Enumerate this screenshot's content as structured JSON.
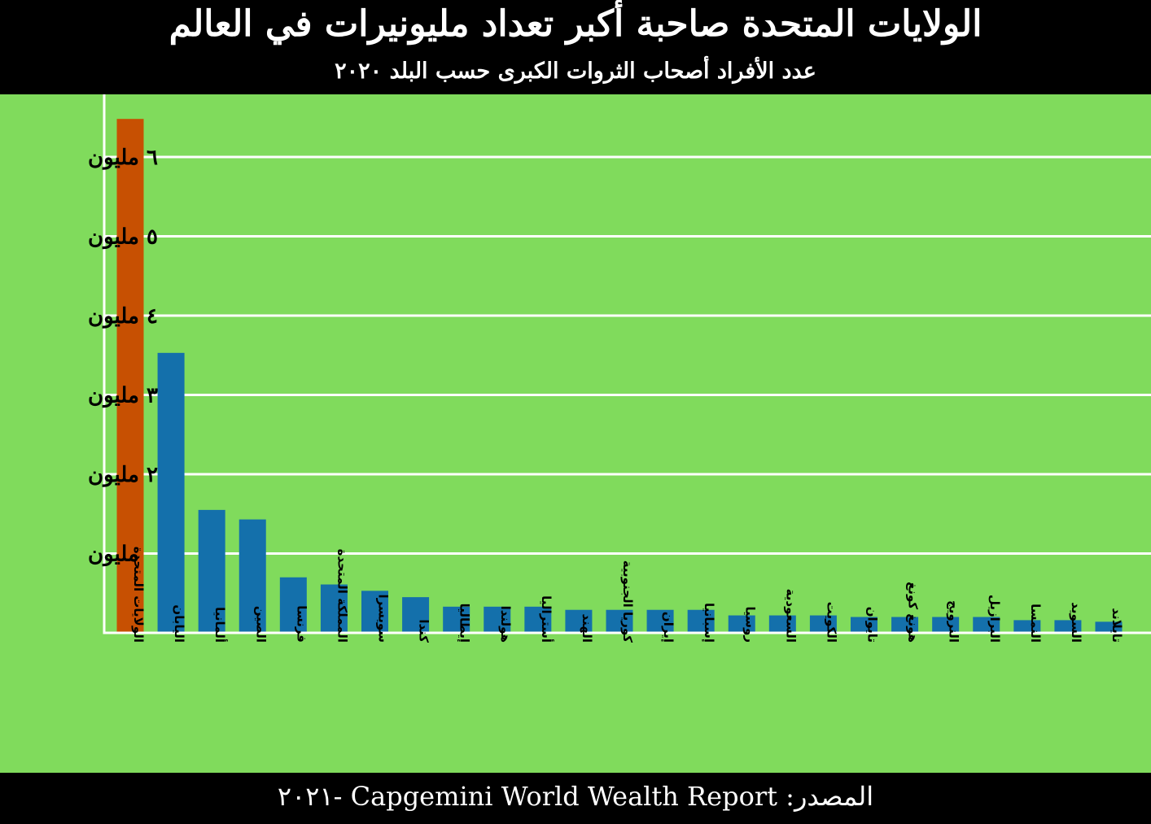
{
  "header": {
    "title": "الولايات المتحدة صاحبة أكبر تعداد مليونيرات في العالم",
    "subtitle": "عدد الأفراد أصحاب الثروات الكبرى حسب البلد ٢٠٢٠"
  },
  "footer": {
    "source": "المصدر: Capgemini World Wealth Report -٢٠٢١"
  },
  "colors": {
    "background": "#80db5c",
    "bar": "#1470ab",
    "highlight": "#c75002",
    "grid": "#ffffff"
  },
  "chart_data": {
    "type": "bar",
    "title": "الولايات المتحدة صاحبة أكبر تعداد مليونيرات في العالم",
    "subtitle": "عدد الأفراد أصحاب الثروات الكبرى حسب البلد ٢٠٢٠",
    "ylim": [
      0,
      6900000
    ],
    "yticks": [
      {
        "value": 1000000,
        "label": "مليون"
      },
      {
        "value": 2000000,
        "label": "٢ مليون"
      },
      {
        "value": 3000000,
        "label": "٣ مليون"
      },
      {
        "value": 4000000,
        "label": "٤ مليون"
      },
      {
        "value": 5000000,
        "label": "٥ مليون"
      },
      {
        "value": 6000000,
        "label": "٦ مليون"
      }
    ],
    "grid": true,
    "highlight_index": 0,
    "categories": [
      "الولايات المتحدة",
      "اليابان",
      "ألمانيا",
      "الصين",
      "فرنسا",
      "المملكة المتحدة",
      "سويسرا",
      "كندا",
      "إيطاليا",
      "هولندا",
      "أستراليا",
      "الهند",
      "كوريا الجنوبية",
      "إيران",
      "إسبانيا",
      "روسيا",
      "السعودية",
      "الكويت",
      "تايوان",
      "هونغ كونغ",
      "النرويج",
      "البرازيل",
      "النمسا",
      "السويد",
      "تايلاند"
    ],
    "values": [
      6480000,
      3530000,
      1550000,
      1430000,
      700000,
      610000,
      530000,
      450000,
      330000,
      330000,
      330000,
      290000,
      290000,
      290000,
      290000,
      220000,
      220000,
      220000,
      200000,
      200000,
      200000,
      200000,
      160000,
      160000,
      140000
    ]
  }
}
